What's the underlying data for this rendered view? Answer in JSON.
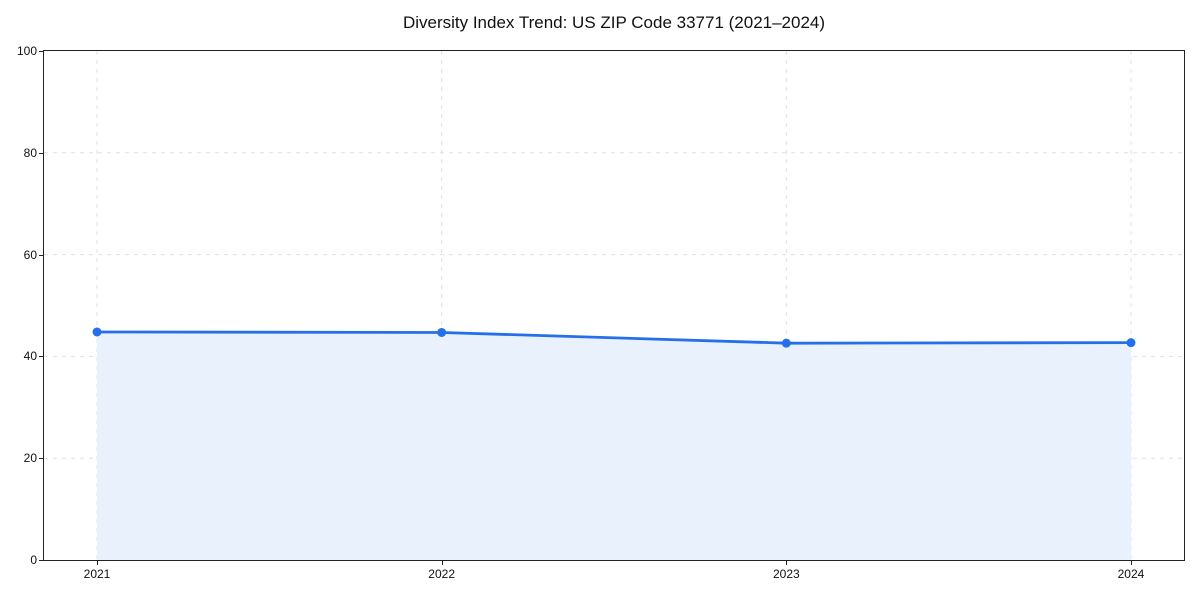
{
  "chart_data": {
    "type": "area",
    "title": "Diversity Index Trend: US ZIP Code 33771 (2021–2024)",
    "x_labels": [
      "2021",
      "2022",
      "2023",
      "2024"
    ],
    "series": [
      {
        "name": "Diversity Index",
        "values": [
          44.8,
          44.7,
          42.6,
          42.7
        ]
      }
    ],
    "ylim": [
      0,
      100
    ],
    "yticks": [
      0,
      20,
      40,
      60,
      80,
      100
    ],
    "xlabel": "",
    "ylabel": "",
    "grid": true,
    "grid_style": "dashed",
    "legend": "none",
    "marker": "circle",
    "colors": {
      "line": "#2570e8",
      "marker": "#2570e8",
      "fill": "#e9f1fd",
      "grid": "#e0e0e0",
      "axis": "#222222",
      "text": "#111111"
    }
  }
}
